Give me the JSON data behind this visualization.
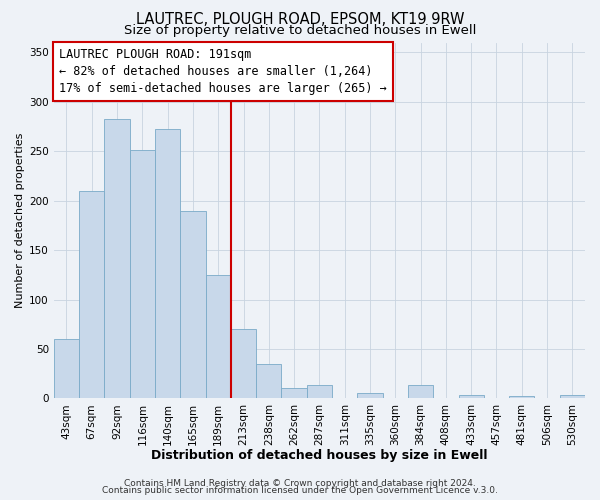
{
  "title": "LAUTREC, PLOUGH ROAD, EPSOM, KT19 9RW",
  "subtitle": "Size of property relative to detached houses in Ewell",
  "xlabel": "Distribution of detached houses by size in Ewell",
  "ylabel": "Number of detached properties",
  "bar_labels": [
    "43sqm",
    "67sqm",
    "92sqm",
    "116sqm",
    "140sqm",
    "165sqm",
    "189sqm",
    "213sqm",
    "238sqm",
    "262sqm",
    "287sqm",
    "311sqm",
    "335sqm",
    "360sqm",
    "384sqm",
    "408sqm",
    "433sqm",
    "457sqm",
    "481sqm",
    "506sqm",
    "530sqm"
  ],
  "bar_values": [
    60,
    210,
    283,
    251,
    272,
    190,
    125,
    70,
    35,
    10,
    13,
    0,
    5,
    0,
    13,
    0,
    3,
    0,
    2,
    0,
    3
  ],
  "bar_color": "#c8d8ea",
  "bar_edge_color": "#7aaac8",
  "vline_position": 6.5,
  "vline_color": "#cc0000",
  "annotation_title": "LAUTREC PLOUGH ROAD: 191sqm",
  "annotation_line1": "← 82% of detached houses are smaller (1,264)",
  "annotation_line2": "17% of semi-detached houses are larger (265) →",
  "annotation_box_facecolor": "#ffffff",
  "annotation_box_edgecolor": "#cc0000",
  "ylim": [
    0,
    360
  ],
  "yticks": [
    0,
    50,
    100,
    150,
    200,
    250,
    300,
    350
  ],
  "footer1": "Contains HM Land Registry data © Crown copyright and database right 2024.",
  "footer2": "Contains public sector information licensed under the Open Government Licence v.3.0.",
  "fig_facecolor": "#eef2f7",
  "plot_facecolor": "#eef2f7",
  "grid_color": "#c8d4e0",
  "title_fontsize": 10.5,
  "subtitle_fontsize": 9.5,
  "xlabel_fontsize": 9,
  "ylabel_fontsize": 8,
  "tick_fontsize": 7.5,
  "annotation_fontsize": 8.5,
  "footer_fontsize": 6.5
}
